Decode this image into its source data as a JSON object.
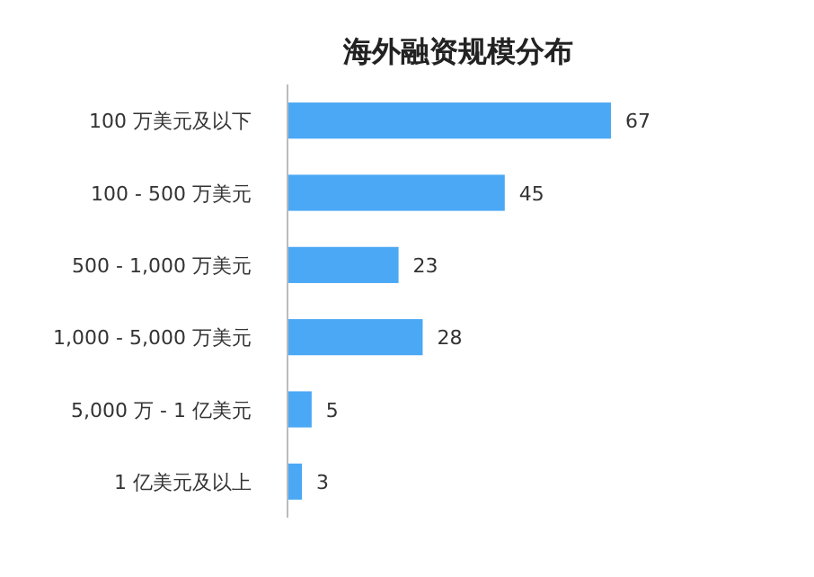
{
  "chart_data": {
    "type": "bar",
    "orientation": "horizontal",
    "title": "海外融资规模分布",
    "categories": [
      "100 万美元及以下",
      "100 - 500 万美元",
      "500 - 1,000 万美元",
      "1,000 - 5,000 万美元",
      "5,000 万 - 1 亿美元",
      "1 亿美元及以上"
    ],
    "values": [
      67,
      45,
      23,
      28,
      5,
      3
    ],
    "color": "#4aa8f5",
    "data_labels": true
  }
}
